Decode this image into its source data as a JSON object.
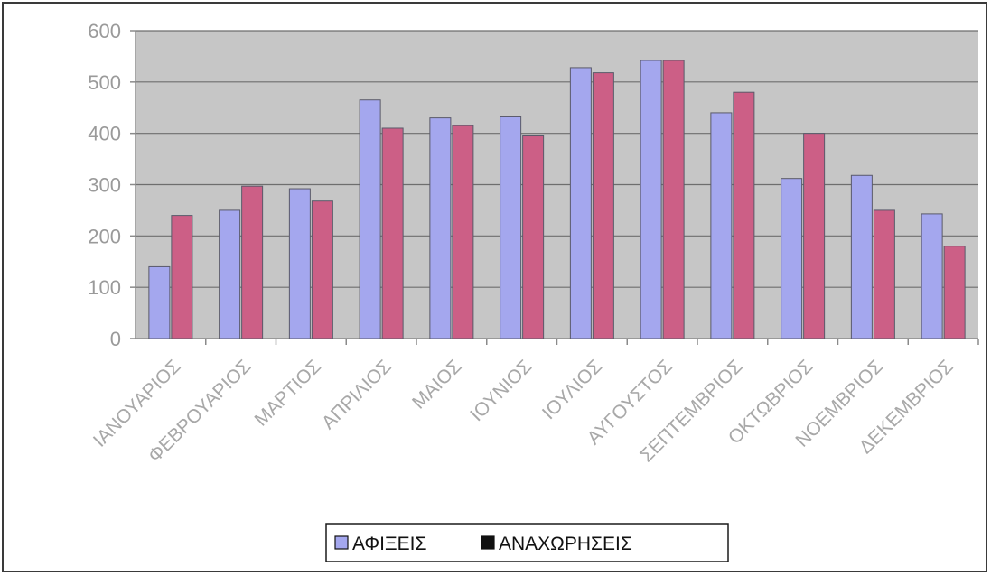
{
  "chart_data": {
    "type": "bar",
    "categories": [
      "ΙΑΝΟΥΑΡΙΟΣ",
      "ΦΕΒΡΟΥΑΡΙΟΣ",
      "ΜΑΡΤΙΟΣ",
      "ΑΠΡΙΛΙΟΣ",
      "ΜΑΙΟΣ",
      "ΙΟΥΝΙΟΣ",
      "ΙΟΥΛΙΟΣ",
      "ΑΥΓΟΥΣΤΟΣ",
      "ΣΕΠΤΕΜΒΡΙΟΣ",
      "ΟΚΤΩΒΡΙΟΣ",
      "ΝΟΕΜΒΡΙΟΣ",
      "ΔΕΚΕΜΒΡΙΟΣ"
    ],
    "series": [
      {
        "name": "ΑΦΙΞΕΙΣ",
        "color": "#a4a7ee",
        "values": [
          140,
          250,
          292,
          465,
          430,
          432,
          528,
          542,
          440,
          312,
          318,
          243
        ]
      },
      {
        "name": "ΑΝΑΧΩΡΗΣΕΙΣ",
        "color": "#cc5f86",
        "values": [
          240,
          297,
          268,
          410,
          415,
          395,
          518,
          542,
          480,
          400,
          250,
          180
        ]
      }
    ],
    "title": "",
    "xlabel": "",
    "ylabel": "",
    "ylim": [
      0,
      600
    ],
    "yticks": [
      0,
      100,
      200,
      300,
      400,
      500,
      600
    ],
    "grid": true,
    "plot_background": "#c6c6c6",
    "legend_position": "bottom"
  }
}
